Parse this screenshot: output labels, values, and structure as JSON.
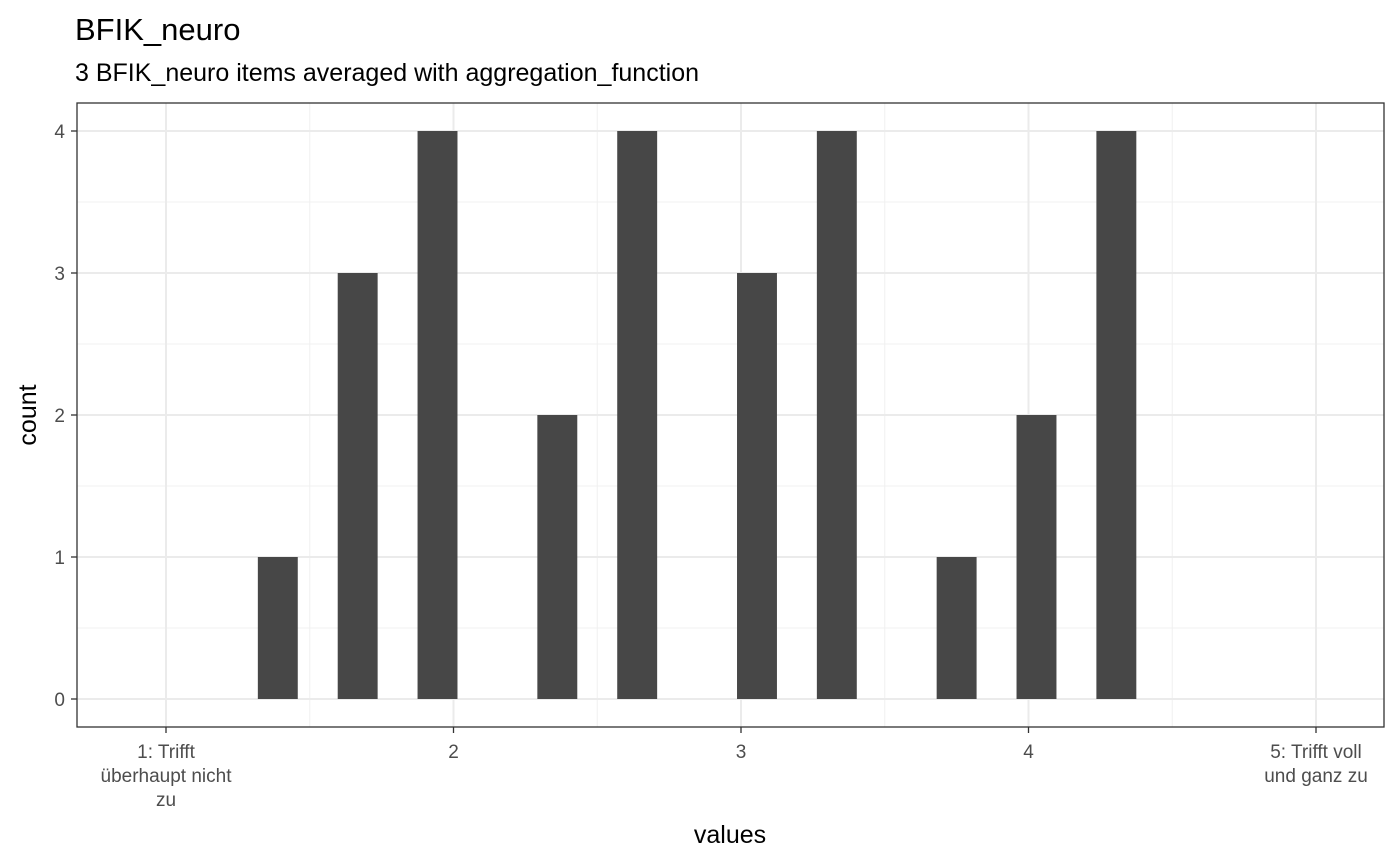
{
  "chart_data": {
    "type": "bar",
    "title": "BFIK_neuro",
    "subtitle": "3 BFIK_neuro items averaged with aggregation_function",
    "xlabel": "values",
    "ylabel": "count",
    "xlim": [
      0.69,
      5.24
    ],
    "ylim": [
      0,
      4
    ],
    "grid": true,
    "x_ticks": [
      {
        "value": 1,
        "label": [
          "1: Trifft",
          "überhaupt nicht",
          "zu"
        ]
      },
      {
        "value": 2,
        "label": [
          "2"
        ]
      },
      {
        "value": 3,
        "label": [
          "3"
        ]
      },
      {
        "value": 4,
        "label": [
          "4"
        ]
      },
      {
        "value": 5,
        "label": [
          "5: Trifft voll",
          "und ganz zu"
        ]
      }
    ],
    "y_ticks": [
      0,
      1,
      2,
      3,
      4
    ],
    "bin_width": 0.1389,
    "x": [
      1.3889,
      1.6667,
      1.9444,
      2.3611,
      2.6389,
      3.0556,
      3.3333,
      3.75,
      4.0278,
      4.3056
    ],
    "values": [
      1,
      3,
      4,
      2,
      4,
      3,
      4,
      1,
      2,
      4
    ],
    "bar_color": "#474747"
  }
}
